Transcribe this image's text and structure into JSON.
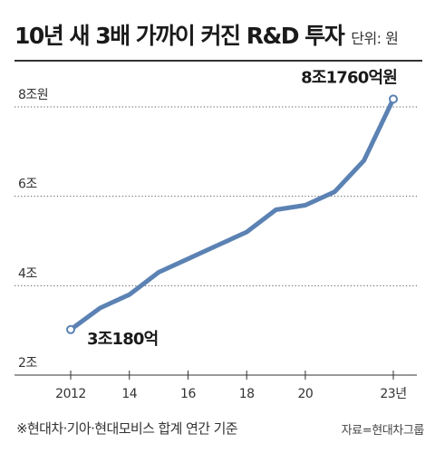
{
  "header": {
    "title": "10년 새 3배 가까이 커진 R&D 투자",
    "unit": "단위: 원"
  },
  "footer": {
    "note": "※현대차·기아·현대모비스 합계 연간 기준",
    "source": "자료=현대차그룹"
  },
  "chart_data": {
    "type": "line",
    "title": "10년 새 3배 가까이 커진 R&D 투자",
    "x": [
      2012,
      2013,
      2014,
      2015,
      2016,
      2017,
      2018,
      2019,
      2020,
      2021,
      2022,
      2023
    ],
    "series": [
      {
        "values": [
          3.018,
          3.5,
          3.8,
          4.3,
          4.6,
          4.9,
          5.2,
          5.7,
          5.8,
          6.1,
          6.8,
          8.176
        ]
      }
    ],
    "xlim": [
      2012,
      2023
    ],
    "ylim": [
      2,
      8
    ],
    "x_ticks": [
      {
        "value": 2012,
        "label": "2012"
      },
      {
        "value": 2014,
        "label": "14"
      },
      {
        "value": 2016,
        "label": "16"
      },
      {
        "value": 2018,
        "label": "18"
      },
      {
        "value": 2020,
        "label": "20"
      },
      {
        "value": 2023,
        "label": "23년"
      }
    ],
    "y_ticks": [
      {
        "value": 8,
        "label": "8조원"
      },
      {
        "value": 6,
        "label": "6조"
      },
      {
        "value": 4,
        "label": "4조"
      },
      {
        "value": 2,
        "label": "2조"
      }
    ],
    "annotations": [
      {
        "x": 2012,
        "y": 3.018,
        "label": "3조180억"
      },
      {
        "x": 2023,
        "y": 8.176,
        "label": "8조1760억원"
      }
    ],
    "grid": true,
    "colors": {
      "line": "#5b82b3",
      "grid": "#555555",
      "axis": "#333333",
      "text": "#333333"
    }
  }
}
